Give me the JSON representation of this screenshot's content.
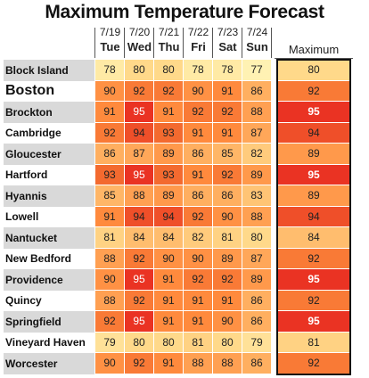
{
  "chart_data": {
    "type": "table",
    "title": "Maximum Temperature Forecast",
    "dates": [
      "7/19",
      "7/20",
      "7/21",
      "7/22",
      "7/23",
      "7/24"
    ],
    "days": [
      "Tue",
      "Wed",
      "Thu",
      "Fri",
      "Sat",
      "Sun"
    ],
    "max_label": "Maximum",
    "rows": [
      {
        "city": "Block Island",
        "values": [
          78,
          80,
          80,
          78,
          78,
          77
        ],
        "max": 80
      },
      {
        "city": "Boston",
        "values": [
          90,
          92,
          92,
          90,
          91,
          86
        ],
        "max": 92,
        "emphasis": true
      },
      {
        "city": "Brockton",
        "values": [
          91,
          95,
          91,
          92,
          92,
          88
        ],
        "max": 95
      },
      {
        "city": "Cambridge",
        "values": [
          92,
          94,
          93,
          91,
          91,
          87
        ],
        "max": 94
      },
      {
        "city": "Gloucester",
        "values": [
          86,
          87,
          89,
          86,
          85,
          82
        ],
        "max": 89
      },
      {
        "city": "Hartford",
        "values": [
          93,
          95,
          93,
          91,
          92,
          89
        ],
        "max": 95
      },
      {
        "city": "Hyannis",
        "values": [
          85,
          88,
          89,
          86,
          86,
          83
        ],
        "max": 89
      },
      {
        "city": "Lowell",
        "values": [
          91,
          94,
          94,
          92,
          90,
          88
        ],
        "max": 94
      },
      {
        "city": "Nantucket",
        "values": [
          81,
          84,
          84,
          82,
          81,
          80
        ],
        "max": 84
      },
      {
        "city": "New Bedford",
        "values": [
          88,
          92,
          90,
          90,
          89,
          87
        ],
        "max": 92
      },
      {
        "city": "Providence",
        "values": [
          90,
          95,
          91,
          92,
          92,
          89
        ],
        "max": 95
      },
      {
        "city": "Quincy",
        "values": [
          88,
          92,
          91,
          91,
          91,
          86
        ],
        "max": 92
      },
      {
        "city": "Springfield",
        "values": [
          92,
          95,
          91,
          91,
          90,
          86
        ],
        "max": 95
      },
      {
        "city": "Vineyard Haven",
        "values": [
          79,
          80,
          80,
          81,
          80,
          79
        ],
        "max": 81
      },
      {
        "city": "Worcester",
        "values": [
          90,
          92,
          91,
          88,
          88,
          86
        ],
        "max": 92
      }
    ],
    "color_scale": [
      {
        "value": 77,
        "color": "#fff2b3"
      },
      {
        "value": 80,
        "color": "#ffd98a"
      },
      {
        "value": 84,
        "color": "#ffbd6e"
      },
      {
        "value": 88,
        "color": "#ffa052"
      },
      {
        "value": 91,
        "color": "#ff8a3d"
      },
      {
        "value": 93,
        "color": "#f36a2f"
      },
      {
        "value": 95,
        "color": "#ea3323"
      }
    ]
  }
}
